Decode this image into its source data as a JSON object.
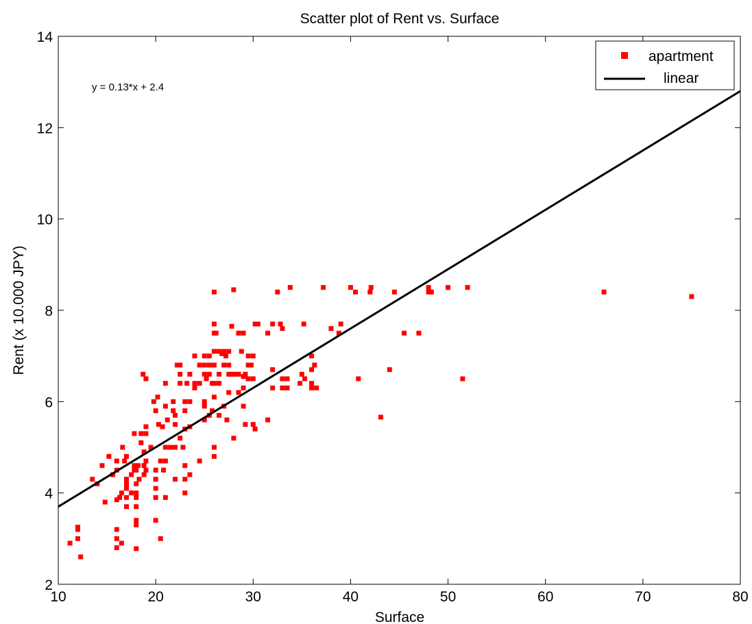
{
  "chart_data": {
    "type": "scatter",
    "title": "Scatter plot of Rent vs. Surface",
    "xlabel": "Surface",
    "ylabel": "Rent (x 10.000 JPY)",
    "xlim": [
      10,
      80
    ],
    "ylim": [
      2,
      14
    ],
    "xticks": [
      10,
      20,
      30,
      40,
      50,
      60,
      70,
      80
    ],
    "yticks": [
      2,
      4,
      6,
      8,
      10,
      12,
      14
    ],
    "grid": false,
    "legend_position": "top-right",
    "annotation": "y = 0.13*x + 2.4",
    "colors": {
      "points": "#ff0000",
      "line": "#000000"
    },
    "series": [
      {
        "name": "apartment",
        "kind": "scatter",
        "marker": "square",
        "points": [
          [
            11.2,
            2.9
          ],
          [
            12,
            3.0
          ],
          [
            12,
            3.2
          ],
          [
            12,
            3.25
          ],
          [
            12.3,
            2.6
          ],
          [
            13.5,
            4.3
          ],
          [
            14,
            4.2
          ],
          [
            14.5,
            4.6
          ],
          [
            14.8,
            3.8
          ],
          [
            15.2,
            4.8
          ],
          [
            15.6,
            4.4
          ],
          [
            16,
            3.2
          ],
          [
            16,
            3.0
          ],
          [
            16,
            2.8
          ],
          [
            16,
            3.85
          ],
          [
            16,
            4.7
          ],
          [
            16,
            4.5
          ],
          [
            16.3,
            3.9
          ],
          [
            16.5,
            4.0
          ],
          [
            16.5,
            2.9
          ],
          [
            16.6,
            5.0
          ],
          [
            16.8,
            4.7
          ],
          [
            17,
            4.3
          ],
          [
            17,
            4.2
          ],
          [
            17,
            3.9
          ],
          [
            17,
            3.7
          ],
          [
            17,
            4.8
          ],
          [
            17,
            4.1
          ],
          [
            17.5,
            4.4
          ],
          [
            17.5,
            4.0
          ],
          [
            17.8,
            5.3
          ],
          [
            17.8,
            4.6
          ],
          [
            17.8,
            4.5
          ],
          [
            18,
            4.5
          ],
          [
            18,
            4.2
          ],
          [
            18,
            4.0
          ],
          [
            18,
            3.9
          ],
          [
            18,
            3.7
          ],
          [
            18,
            3.4
          ],
          [
            18,
            3.3
          ],
          [
            18,
            2.78
          ],
          [
            18.2,
            4.6
          ],
          [
            18.3,
            4.3
          ],
          [
            18.5,
            5.3
          ],
          [
            18.5,
            5.1
          ],
          [
            18.7,
            6.6
          ],
          [
            18.8,
            4.9
          ],
          [
            18.8,
            4.6
          ],
          [
            18.8,
            4.4
          ],
          [
            19,
            6.5
          ],
          [
            19,
            5.3
          ],
          [
            19,
            5.45
          ],
          [
            19,
            4.7
          ],
          [
            19,
            4.5
          ],
          [
            19.5,
            5.0
          ],
          [
            19.8,
            6.0
          ],
          [
            20,
            5.8
          ],
          [
            20,
            4.5
          ],
          [
            20,
            4.3
          ],
          [
            20,
            4.1
          ],
          [
            20,
            3.9
          ],
          [
            20,
            3.4
          ],
          [
            20.2,
            6.1
          ],
          [
            20.3,
            5.5
          ],
          [
            20.5,
            4.7
          ],
          [
            20.5,
            3.0
          ],
          [
            20.7,
            5.45
          ],
          [
            20.8,
            4.5
          ],
          [
            21,
            6.4
          ],
          [
            21,
            5.9
          ],
          [
            21,
            5.0
          ],
          [
            21,
            4.7
          ],
          [
            21,
            3.9
          ],
          [
            21.2,
            5.6
          ],
          [
            21.5,
            5.0
          ],
          [
            21.8,
            6.0
          ],
          [
            21.8,
            5.8
          ],
          [
            22,
            5.7
          ],
          [
            22,
            5.5
          ],
          [
            22,
            5.0
          ],
          [
            22,
            4.3
          ],
          [
            22.2,
            6.8
          ],
          [
            22.5,
            6.8
          ],
          [
            22.5,
            6.6
          ],
          [
            22.5,
            6.4
          ],
          [
            22.5,
            5.2
          ],
          [
            22.8,
            5.0
          ],
          [
            23,
            6.0
          ],
          [
            23,
            5.8
          ],
          [
            23,
            5.4
          ],
          [
            23,
            4.6
          ],
          [
            23,
            4.3
          ],
          [
            23,
            4.0
          ],
          [
            23.2,
            6.4
          ],
          [
            23.5,
            6.6
          ],
          [
            23.5,
            6.0
          ],
          [
            23.5,
            5.45
          ],
          [
            23.5,
            4.4
          ],
          [
            24,
            7.0
          ],
          [
            24,
            6.4
          ],
          [
            24,
            6.3
          ],
          [
            24.5,
            6.8
          ],
          [
            24.5,
            6.4
          ],
          [
            24.5,
            4.7
          ],
          [
            25,
            7.0
          ],
          [
            25,
            6.8
          ],
          [
            25,
            6.6
          ],
          [
            25,
            6.0
          ],
          [
            25,
            5.9
          ],
          [
            25,
            5.6
          ],
          [
            25.2,
            6.5
          ],
          [
            25.5,
            7.0
          ],
          [
            25.5,
            6.8
          ],
          [
            25.5,
            6.6
          ],
          [
            25.5,
            5.7
          ],
          [
            25.8,
            6.4
          ],
          [
            25.8,
            5.8
          ],
          [
            26,
            8.4
          ],
          [
            26,
            7.7
          ],
          [
            26,
            7.5
          ],
          [
            26,
            7.1
          ],
          [
            26,
            6.8
          ],
          [
            26,
            6.4
          ],
          [
            26,
            6.1
          ],
          [
            26,
            5.0
          ],
          [
            26,
            4.8
          ],
          [
            26.2,
            7.5
          ],
          [
            26.5,
            7.1
          ],
          [
            26.5,
            6.6
          ],
          [
            26.5,
            6.4
          ],
          [
            26.5,
            5.7
          ],
          [
            26.8,
            7.05
          ],
          [
            27,
            7.1
          ],
          [
            27,
            6.8
          ],
          [
            27,
            5.9
          ],
          [
            27.2,
            7.0
          ],
          [
            27.3,
            5.6
          ],
          [
            27.5,
            7.1
          ],
          [
            27.5,
            6.8
          ],
          [
            27.5,
            6.6
          ],
          [
            27.5,
            6.2
          ],
          [
            27.8,
            7.65
          ],
          [
            27.8,
            6.6
          ],
          [
            28,
            8.45
          ],
          [
            28,
            5.2
          ],
          [
            28.2,
            6.6
          ],
          [
            28.5,
            7.5
          ],
          [
            28.5,
            6.2
          ],
          [
            28.5,
            6.6
          ],
          [
            28.8,
            7.1
          ],
          [
            29,
            7.5
          ],
          [
            29,
            6.55
          ],
          [
            29,
            6.3
          ],
          [
            29,
            5.9
          ],
          [
            29.2,
            6.6
          ],
          [
            29.2,
            5.5
          ],
          [
            29.5,
            7.0
          ],
          [
            29.5,
            6.8
          ],
          [
            29.5,
            6.5
          ],
          [
            29.8,
            6.8
          ],
          [
            30,
            7.0
          ],
          [
            30,
            6.5
          ],
          [
            30,
            5.5
          ],
          [
            30.2,
            7.7
          ],
          [
            30.2,
            5.4
          ],
          [
            30.5,
            7.7
          ],
          [
            31.5,
            7.5
          ],
          [
            31.5,
            5.6
          ],
          [
            32,
            7.7
          ],
          [
            32,
            6.7
          ],
          [
            32,
            6.3
          ],
          [
            32.5,
            8.4
          ],
          [
            32.8,
            7.7
          ],
          [
            33,
            7.6
          ],
          [
            33,
            6.5
          ],
          [
            33,
            6.3
          ],
          [
            33.5,
            6.5
          ],
          [
            33.5,
            6.3
          ],
          [
            33.8,
            8.5
          ],
          [
            34.8,
            6.4
          ],
          [
            35,
            6.6
          ],
          [
            35.2,
            7.7
          ],
          [
            35.3,
            6.5
          ],
          [
            36,
            7.0
          ],
          [
            36,
            6.7
          ],
          [
            36,
            6.4
          ],
          [
            36,
            6.3
          ],
          [
            36.3,
            6.8
          ],
          [
            36.5,
            6.3
          ],
          [
            37.2,
            8.5
          ],
          [
            38,
            7.6
          ],
          [
            38.8,
            7.5
          ],
          [
            39,
            7.7
          ],
          [
            40,
            8.5
          ],
          [
            40.5,
            8.4
          ],
          [
            40.8,
            6.5
          ],
          [
            42,
            8.4
          ],
          [
            42.1,
            8.5
          ],
          [
            43.1,
            5.66
          ],
          [
            44,
            6.7
          ],
          [
            44.5,
            8.4
          ],
          [
            45.5,
            7.5
          ],
          [
            47,
            7.5
          ],
          [
            48,
            8.5
          ],
          [
            48,
            8.4
          ],
          [
            48.3,
            8.4
          ],
          [
            50,
            8.5
          ],
          [
            51.5,
            6.5
          ],
          [
            52,
            8.5
          ],
          [
            66,
            8.4
          ],
          [
            75,
            8.3
          ]
        ]
      },
      {
        "name": "linear",
        "kind": "line",
        "slope": 0.13,
        "intercept": 2.4,
        "x_range": [
          10,
          80
        ]
      }
    ]
  }
}
